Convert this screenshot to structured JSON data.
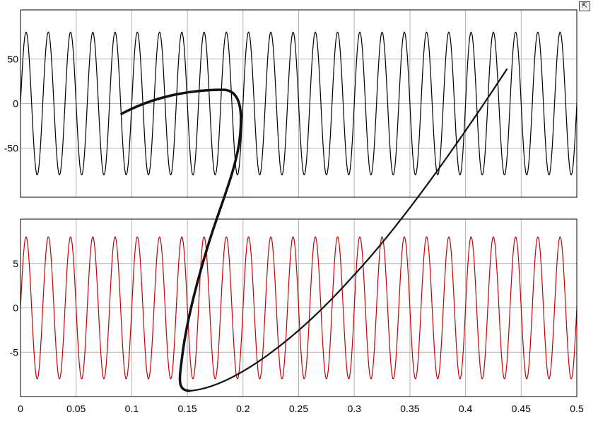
{
  "chart_data": [
    {
      "type": "line",
      "title": "",
      "xlabel": "",
      "ylabel": "",
      "xlim": [
        0,
        0.5
      ],
      "ylim": [
        -105,
        105
      ],
      "grid": true,
      "yticks": [
        {
          "value": 50,
          "label": "50"
        },
        {
          "value": 0,
          "label": "0"
        },
        {
          "value": -50,
          "label": "-50"
        }
      ],
      "x_grid": [
        0,
        0.05,
        0.1,
        0.15,
        0.2,
        0.25,
        0.3,
        0.35,
        0.4,
        0.45,
        0.5
      ],
      "series": [
        {
          "color": "#000000",
          "waveform": "sine",
          "amplitude": 80,
          "frequency_hz": 50,
          "phase_deg": 0
        }
      ]
    },
    {
      "type": "line",
      "title": "",
      "xlabel": "",
      "ylabel": "",
      "xlim": [
        0,
        0.5
      ],
      "ylim": [
        -10,
        10
      ],
      "grid": true,
      "yticks": [
        {
          "value": 5,
          "label": "5"
        },
        {
          "value": 0,
          "label": "0"
        },
        {
          "value": -5,
          "label": "-5"
        }
      ],
      "xticks": [
        {
          "value": 0,
          "label": "0"
        },
        {
          "value": 0.05,
          "label": "0.05"
        },
        {
          "value": 0.1,
          "label": "0.1"
        },
        {
          "value": 0.15,
          "label": "0.15"
        },
        {
          "value": 0.2,
          "label": "0.2"
        },
        {
          "value": 0.25,
          "label": "0.25"
        },
        {
          "value": 0.3,
          "label": "0.3"
        },
        {
          "value": 0.35,
          "label": "0.35"
        },
        {
          "value": 0.4,
          "label": "0.4"
        },
        {
          "value": 0.45,
          "label": "0.45"
        },
        {
          "value": 0.5,
          "label": "0.5"
        }
      ],
      "series": [
        {
          "color": "#cc0000",
          "waveform": "sine",
          "amplitude": 8,
          "frequency_hz": 50,
          "phase_deg": 0
        }
      ]
    }
  ],
  "dock_button": {
    "icon": "undock-arrow-icon",
    "glyph": "⇱"
  },
  "colors": {
    "background": "#ffffff",
    "grid": "#b4b4b4",
    "axes_border": "#000000",
    "annotation": "#111111"
  }
}
